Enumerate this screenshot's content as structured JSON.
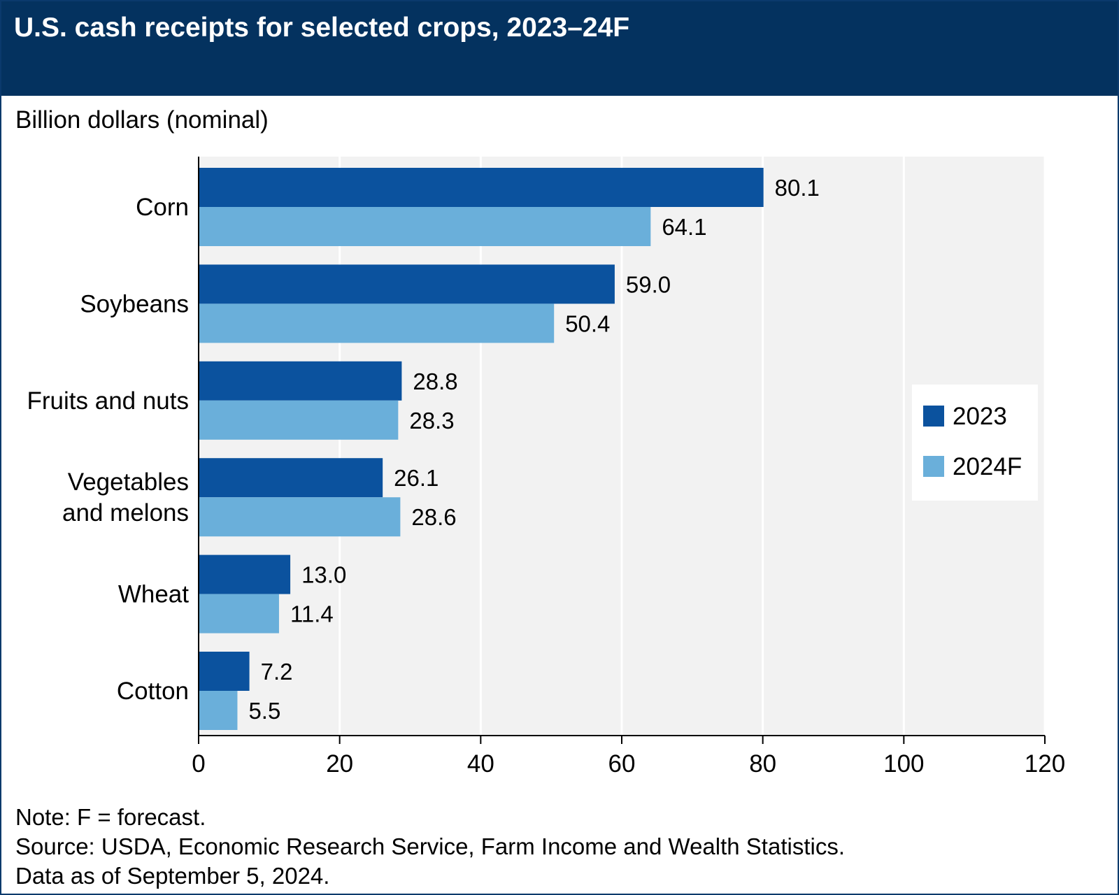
{
  "title": "U.S. cash receipts for selected crops, 2023–24F",
  "notes": {
    "note": "Note: F = forecast.",
    "source": "Source: USDA, Economic Research Service, Farm Income and Wealth Statistics.",
    "data_as_of": "Data as of September 5, 2024."
  },
  "chart_data": {
    "type": "bar",
    "orientation": "horizontal",
    "title": "U.S. cash receipts for selected crops, 2023–24F",
    "ylabel": "Billion dollars (nominal)",
    "xlabel": "",
    "categories": [
      [
        "Corn"
      ],
      [
        "Soybeans"
      ],
      [
        "Fruits and nuts"
      ],
      [
        "Vegetables",
        "and melons"
      ],
      [
        "Wheat"
      ],
      [
        "Cotton"
      ]
    ],
    "series": [
      {
        "name": "2023",
        "color": "#0b529e",
        "values": [
          80.1,
          59.0,
          28.8,
          26.1,
          13.0,
          7.2
        ]
      },
      {
        "name": "2024F",
        "color": "#6aafda",
        "values": [
          64.1,
          50.4,
          28.3,
          28.6,
          11.4,
          5.5
        ]
      }
    ],
    "value_labels": [
      [
        "80.1",
        "59.0",
        "28.8",
        "26.1",
        "13.0",
        "7.2"
      ],
      [
        "64.1",
        "50.4",
        "28.3",
        "28.6",
        "11.4",
        "5.5"
      ]
    ],
    "xlim": [
      0,
      120
    ],
    "xticks": [
      0,
      20,
      40,
      60,
      80,
      100,
      120
    ],
    "grid": true,
    "legend_position": "right",
    "plot_background": "#f2f2f2"
  }
}
